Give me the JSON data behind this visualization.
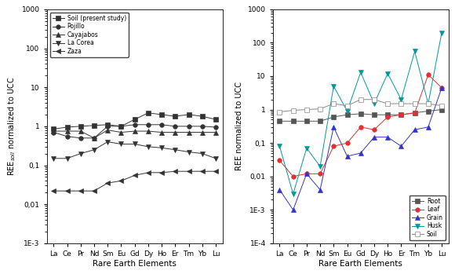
{
  "elements": [
    "La",
    "Ce",
    "Pr",
    "Nd",
    "Sm",
    "Eu",
    "Gd",
    "Dy",
    "Ho",
    "Er",
    "Tm",
    "Yb",
    "Lu"
  ],
  "left": {
    "ylabel": "REE$_{soil}$ normalized to UCC",
    "xlabel": "Rare Earth Elements",
    "ylim": [
      0.001,
      1000
    ],
    "series": {
      "Soil (present study)": {
        "color": "#333333",
        "marker": "s",
        "markersize": 4,
        "values": [
          0.85,
          0.95,
          1.0,
          1.05,
          1.1,
          1.0,
          1.5,
          2.2,
          2.0,
          1.8,
          2.0,
          1.8,
          1.5
        ]
      },
      "Pojillo": {
        "color": "#333333",
        "marker": "o",
        "markersize": 4,
        "values": [
          0.7,
          0.55,
          0.5,
          0.5,
          1.0,
          1.0,
          1.1,
          1.1,
          1.1,
          1.0,
          1.0,
          1.0,
          0.95
        ]
      },
      "Cayajabos": {
        "color": "#333333",
        "marker": "^",
        "markersize": 4,
        "values": [
          0.75,
          0.75,
          0.75,
          0.5,
          0.8,
          0.7,
          0.75,
          0.75,
          0.7,
          0.7,
          0.7,
          0.7,
          0.7
        ]
      },
      "La Corea": {
        "color": "#333333",
        "marker": "v",
        "markersize": 4,
        "values": [
          0.15,
          0.15,
          0.2,
          0.25,
          0.4,
          0.35,
          0.35,
          0.3,
          0.28,
          0.25,
          0.22,
          0.2,
          0.15
        ]
      },
      "Zaza": {
        "color": "#333333",
        "marker": "<",
        "markersize": 4,
        "values": [
          0.022,
          0.022,
          0.022,
          0.022,
          0.035,
          0.04,
          0.055,
          0.065,
          0.065,
          0.07,
          0.07,
          0.07,
          0.07
        ]
      }
    },
    "ytick_map": {
      "0.001": "1E-3",
      "0.01": "0,01",
      "0.1": "0,1",
      "1": "1",
      "10": "10",
      "100": "100",
      "1000": "1000"
    }
  },
  "right": {
    "ylabel": "REE normalized to UCC",
    "xlabel": "Rare Earth Elements",
    "ylim": [
      0.0001,
      1000
    ],
    "series": {
      "Root": {
        "color": "#555555",
        "marker": "s",
        "markersize": 4,
        "markerfacecolor": "#555555",
        "values": [
          0.45,
          0.45,
          0.45,
          0.45,
          0.6,
          0.7,
          0.75,
          0.7,
          0.7,
          0.7,
          0.8,
          0.9,
          1.0
        ]
      },
      "Leaf": {
        "color": "#e03030",
        "marker": "o",
        "markersize": 4,
        "markerfacecolor": "#e03030",
        "values": [
          0.03,
          0.01,
          0.012,
          0.012,
          0.08,
          0.1,
          0.3,
          0.25,
          0.6,
          0.7,
          0.8,
          11.0,
          4.5
        ]
      },
      "Grain": {
        "color": "#3333cc",
        "marker": "^",
        "markersize": 4,
        "markerfacecolor": "#3333cc",
        "values": [
          0.004,
          0.001,
          0.012,
          0.004,
          0.3,
          0.04,
          0.05,
          0.15,
          0.15,
          0.08,
          0.25,
          0.3,
          4.5
        ]
      },
      "Husk": {
        "color": "#009999",
        "marker": "v",
        "markersize": 4,
        "markerfacecolor": "#009999",
        "values": [
          0.08,
          0.003,
          0.07,
          0.02,
          5.0,
          0.9,
          13.0,
          1.5,
          12.0,
          2.0,
          55.0,
          1.5,
          200.0
        ]
      },
      "Soil": {
        "color": "#888888",
        "marker": "s",
        "markersize": 4,
        "markerfacecolor": "white",
        "values": [
          0.85,
          0.95,
          1.0,
          1.05,
          1.5,
          1.3,
          2.0,
          2.0,
          1.5,
          1.5,
          1.5,
          1.5,
          1.3
        ]
      }
    },
    "ytick_map": {
      "0.0001": "1E-4",
      "0.001": "1E-3",
      "0.01": "0,01",
      "0.1": "0,1",
      "1": "1",
      "10": "10",
      "100": "100",
      "1000": "1000"
    }
  },
  "background_color": "#ffffff",
  "fontsize": 6.5
}
